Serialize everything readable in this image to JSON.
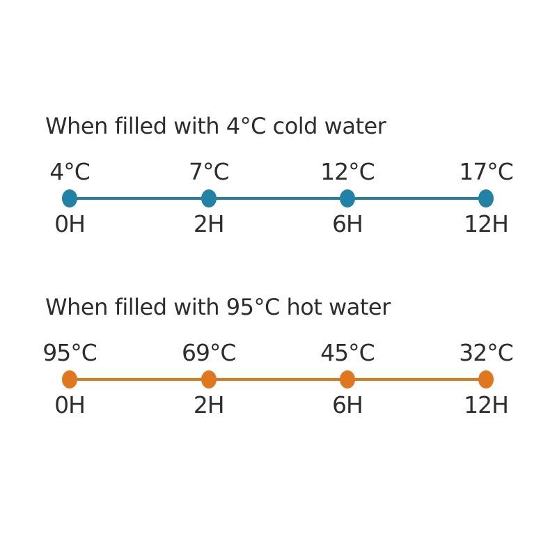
{
  "page": {
    "background_color": "#ffffff",
    "text_color": "#2d2d2d"
  },
  "timelines": [
    {
      "id": "cold-water",
      "title": "When filled with 4°C cold water",
      "accent_color": "#1f82a6",
      "points": [
        {
          "temp": "4°C",
          "time": "0H"
        },
        {
          "temp": "7°C",
          "time": "2H"
        },
        {
          "temp": "12°C",
          "time": "6H"
        },
        {
          "temp": "17°C",
          "time": "12H"
        }
      ]
    },
    {
      "id": "hot-water",
      "title": "When filled with 95°C hot water",
      "accent_color": "#e0771c",
      "points": [
        {
          "temp": "95°C",
          "time": "0H"
        },
        {
          "temp": "69°C",
          "time": "2H"
        },
        {
          "temp": "45°C",
          "time": "6H"
        },
        {
          "temp": "32°C",
          "time": "12H"
        }
      ]
    }
  ],
  "chart_data": [
    {
      "type": "line",
      "title": "When filled with 4°C cold water",
      "x": [
        "0H",
        "2H",
        "6H",
        "12H"
      ],
      "x_hours": [
        0,
        2,
        6,
        12
      ],
      "values": [
        4,
        7,
        12,
        17
      ],
      "unit": "°C",
      "line_color": "#1f82a6",
      "grid": false,
      "legend": "none",
      "notes": "Evenly spaced markers with temperature labels above points and time labels below points"
    },
    {
      "type": "line",
      "title": "When filled with 95°C hot water",
      "x": [
        "0H",
        "2H",
        "6H",
        "12H"
      ],
      "x_hours": [
        0,
        2,
        6,
        12
      ],
      "values": [
        95,
        69,
        45,
        32
      ],
      "unit": "°C",
      "line_color": "#e0771c",
      "grid": false,
      "legend": "none",
      "notes": "Evenly spaced markers with temperature labels above points and time labels below points"
    }
  ]
}
